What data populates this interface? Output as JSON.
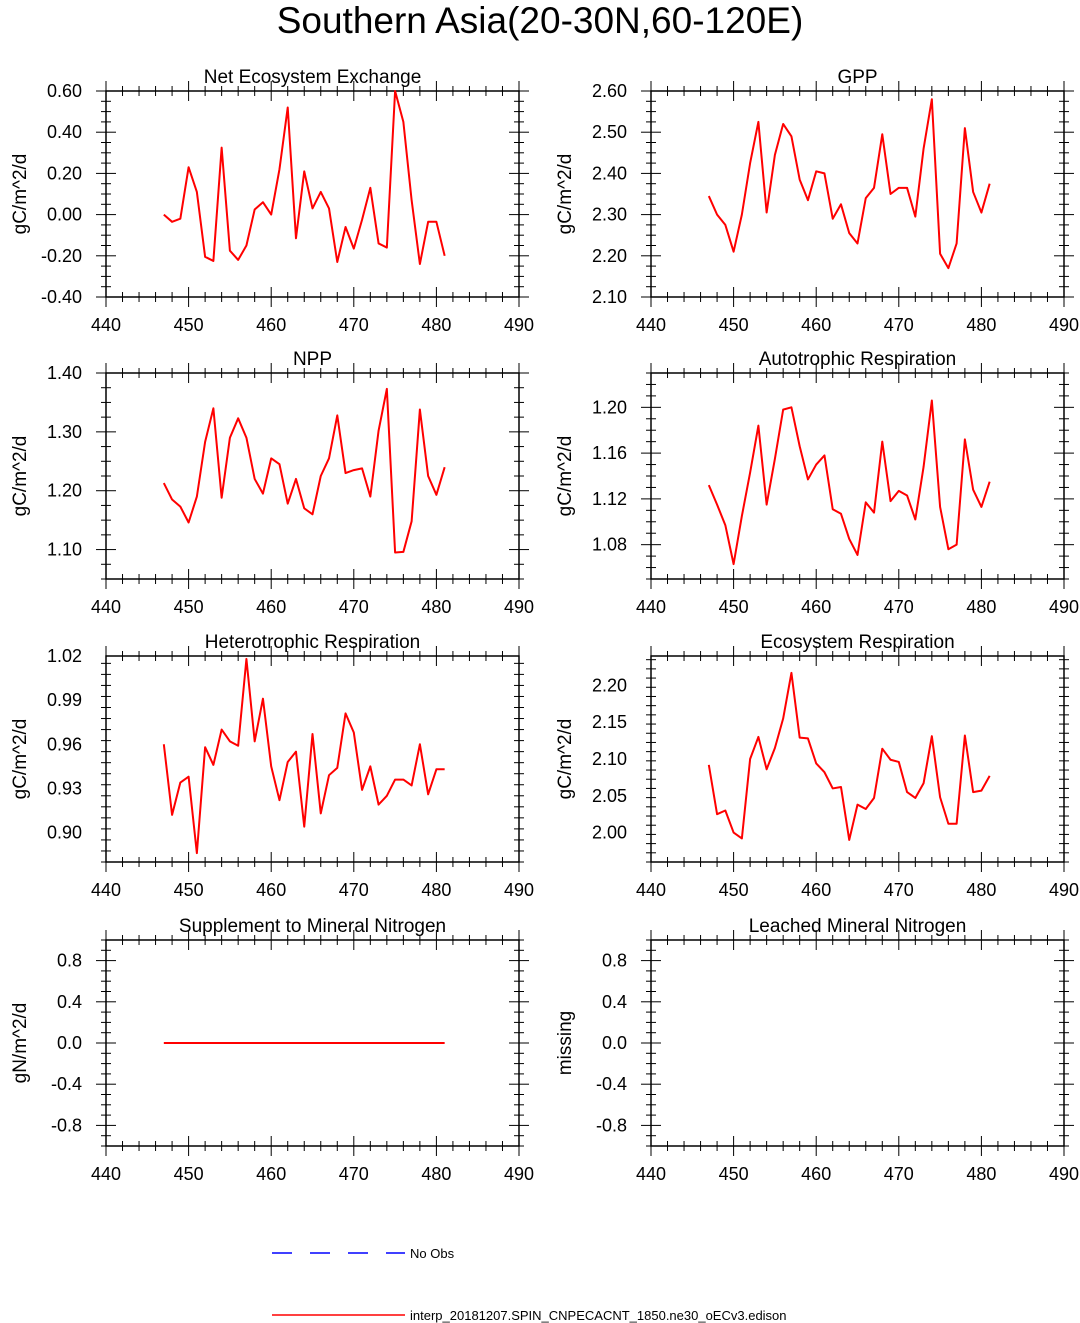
{
  "page": {
    "title": "Southern Asia(20-30N,60-120E)"
  },
  "legend": {
    "no_obs_label": "No Obs",
    "model_label": "interp_20181207.SPIN_CNPECACNT_1850.ne30_oECv3.edison",
    "no_obs_color": "#0000ff",
    "model_color": "#ff0000"
  },
  "chart_data": [
    {
      "type": "line",
      "title": "Net Ecosystem Exchange",
      "ylabel": "gC/m^2/d",
      "xlim": [
        440,
        490
      ],
      "ylim": [
        -0.4,
        0.6
      ],
      "xticks": [
        "440",
        "450",
        "460",
        "470",
        "480",
        "490"
      ],
      "yticks": [
        "-0.40",
        "-0.20",
        "0.00",
        "0.20",
        "0.40",
        "0.60"
      ],
      "ytick_values": [
        -0.4,
        -0.2,
        0.0,
        0.2,
        0.4,
        0.6
      ],
      "x": [
        447,
        448,
        449,
        450,
        451,
        452,
        453,
        454,
        455,
        456,
        457,
        458,
        459,
        460,
        461,
        462,
        463,
        464,
        465,
        466,
        467,
        468,
        469,
        470,
        471,
        472,
        473,
        474,
        475,
        476,
        477,
        478,
        479,
        480,
        481
      ],
      "series": [
        {
          "name": "interp_20181207.SPIN_CNPECACNT_1850.ne30_oECv3.edison",
          "color": "#ff0000",
          "values": [
            0.0,
            -0.035,
            -0.02,
            0.23,
            0.11,
            -0.205,
            -0.225,
            0.325,
            -0.175,
            -0.22,
            -0.15,
            0.025,
            0.06,
            0.0,
            0.22,
            0.52,
            -0.115,
            0.21,
            0.03,
            0.11,
            0.03,
            -0.23,
            -0.06,
            -0.165,
            -0.025,
            0.13,
            -0.14,
            -0.16,
            0.6,
            0.45,
            0.07,
            -0.24,
            -0.035,
            -0.035,
            -0.2
          ]
        }
      ]
    },
    {
      "type": "line",
      "title": "GPP",
      "ylabel": "gC/m^2/d",
      "xlim": [
        440,
        490
      ],
      "ylim": [
        2.1,
        2.6
      ],
      "xticks": [
        "440",
        "450",
        "460",
        "470",
        "480",
        "490"
      ],
      "yticks": [
        "2.10",
        "2.20",
        "2.30",
        "2.40",
        "2.50",
        "2.60"
      ],
      "ytick_values": [
        2.1,
        2.2,
        2.3,
        2.4,
        2.5,
        2.6
      ],
      "x": [
        447,
        448,
        449,
        450,
        451,
        452,
        453,
        454,
        455,
        456,
        457,
        458,
        459,
        460,
        461,
        462,
        463,
        464,
        465,
        466,
        467,
        468,
        469,
        470,
        471,
        472,
        473,
        474,
        475,
        476,
        477,
        478,
        479,
        480,
        481
      ],
      "series": [
        {
          "name": "interp_20181207.SPIN_CNPECACNT_1850.ne30_oECv3.edison",
          "color": "#ff0000",
          "values": [
            2.345,
            2.3,
            2.275,
            2.21,
            2.3,
            2.425,
            2.525,
            2.305,
            2.445,
            2.52,
            2.49,
            2.385,
            2.335,
            2.405,
            2.4,
            2.29,
            2.325,
            2.255,
            2.23,
            2.34,
            2.365,
            2.495,
            2.35,
            2.365,
            2.365,
            2.295,
            2.46,
            2.58,
            2.205,
            2.17,
            2.23,
            2.51,
            2.355,
            2.305,
            2.375
          ]
        }
      ]
    },
    {
      "type": "line",
      "title": "NPP",
      "ylabel": "gC/m^2/d",
      "xlim": [
        440,
        490
      ],
      "ylim": [
        1.05,
        1.4
      ],
      "xticks": [
        "440",
        "450",
        "460",
        "470",
        "480",
        "490"
      ],
      "yticks": [
        "1.10",
        "1.20",
        "1.30",
        "1.40"
      ],
      "ytick_values": [
        1.1,
        1.2,
        1.3,
        1.4
      ],
      "x": [
        447,
        448,
        449,
        450,
        451,
        452,
        453,
        454,
        455,
        456,
        457,
        458,
        459,
        460,
        461,
        462,
        463,
        464,
        465,
        466,
        467,
        468,
        469,
        470,
        471,
        472,
        473,
        474,
        475,
        476,
        477,
        478,
        479,
        480,
        481
      ],
      "series": [
        {
          "name": "interp_20181207.SPIN_CNPECACNT_1850.ne30_oECv3.edison",
          "color": "#ff0000",
          "values": [
            1.213,
            1.185,
            1.173,
            1.146,
            1.19,
            1.283,
            1.34,
            1.188,
            1.29,
            1.323,
            1.29,
            1.22,
            1.195,
            1.255,
            1.245,
            1.178,
            1.22,
            1.17,
            1.16,
            1.225,
            1.255,
            1.328,
            1.23,
            1.235,
            1.238,
            1.19,
            1.302,
            1.373,
            1.095,
            1.096,
            1.148,
            1.338,
            1.225,
            1.193,
            1.24
          ]
        }
      ]
    },
    {
      "type": "line",
      "title": "Autotrophic Respiration",
      "ylabel": "gC/m^2/d",
      "xlim": [
        440,
        490
      ],
      "ylim": [
        1.05,
        1.23
      ],
      "xticks": [
        "440",
        "450",
        "460",
        "470",
        "480",
        "490"
      ],
      "yticks": [
        "1.08",
        "1.12",
        "1.16",
        "1.20"
      ],
      "ytick_values": [
        1.08,
        1.12,
        1.16,
        1.2
      ],
      "x": [
        447,
        448,
        449,
        450,
        451,
        452,
        453,
        454,
        455,
        456,
        457,
        458,
        459,
        460,
        461,
        462,
        463,
        464,
        465,
        466,
        467,
        468,
        469,
        470,
        471,
        472,
        473,
        474,
        475,
        476,
        477,
        478,
        479,
        480,
        481
      ],
      "series": [
        {
          "name": "interp_20181207.SPIN_CNPECACNT_1850.ne30_oECv3.edison",
          "color": "#ff0000",
          "values": [
            1.132,
            1.115,
            1.097,
            1.063,
            1.105,
            1.143,
            1.184,
            1.115,
            1.155,
            1.198,
            1.2,
            1.166,
            1.137,
            1.15,
            1.158,
            1.111,
            1.107,
            1.085,
            1.071,
            1.117,
            1.108,
            1.17,
            1.118,
            1.127,
            1.123,
            1.102,
            1.148,
            1.206,
            1.113,
            1.076,
            1.08,
            1.172,
            1.128,
            1.113,
            1.135
          ]
        }
      ]
    },
    {
      "type": "line",
      "title": "Heterotrophic Respiration",
      "ylabel": "gC/m^2/d",
      "xlim": [
        440,
        490
      ],
      "ylim": [
        0.88,
        1.02
      ],
      "xticks": [
        "440",
        "450",
        "460",
        "470",
        "480",
        "490"
      ],
      "yticks": [
        "0.90",
        "0.93",
        "0.96",
        "0.99",
        "1.02"
      ],
      "ytick_values": [
        0.9,
        0.93,
        0.96,
        0.99,
        1.02
      ],
      "x": [
        447,
        448,
        449,
        450,
        451,
        452,
        453,
        454,
        455,
        456,
        457,
        458,
        459,
        460,
        461,
        462,
        463,
        464,
        465,
        466,
        467,
        468,
        469,
        470,
        471,
        472,
        473,
        474,
        475,
        476,
        477,
        478,
        479,
        480,
        481
      ],
      "series": [
        {
          "name": "interp_20181207.SPIN_CNPECACNT_1850.ne30_oECv3.edison",
          "color": "#ff0000",
          "values": [
            0.96,
            0.912,
            0.934,
            0.938,
            0.886,
            0.958,
            0.946,
            0.97,
            0.962,
            0.959,
            1.018,
            0.962,
            0.991,
            0.945,
            0.922,
            0.948,
            0.955,
            0.904,
            0.967,
            0.913,
            0.939,
            0.944,
            0.981,
            0.968,
            0.929,
            0.945,
            0.919,
            0.925,
            0.936,
            0.936,
            0.932,
            0.96,
            0.926,
            0.943,
            0.943
          ]
        }
      ]
    },
    {
      "type": "line",
      "title": "Ecosystem Respiration",
      "ylabel": "gC/m^2/d",
      "xlim": [
        440,
        490
      ],
      "ylim": [
        1.96,
        2.24
      ],
      "xticks": [
        "440",
        "450",
        "460",
        "470",
        "480",
        "490"
      ],
      "yticks": [
        "2.00",
        "2.05",
        "2.10",
        "2.15",
        "2.20"
      ],
      "ytick_values": [
        2.0,
        2.05,
        2.1,
        2.15,
        2.2
      ],
      "x": [
        447,
        448,
        449,
        450,
        451,
        452,
        453,
        454,
        455,
        456,
        457,
        458,
        459,
        460,
        461,
        462,
        463,
        464,
        465,
        466,
        467,
        468,
        469,
        470,
        471,
        472,
        473,
        474,
        475,
        476,
        477,
        478,
        479,
        480,
        481
      ],
      "series": [
        {
          "name": "interp_20181207.SPIN_CNPECACNT_1850.ne30_oECv3.edison",
          "color": "#ff0000",
          "values": [
            2.092,
            2.025,
            2.03,
            2.0,
            1.992,
            2.1,
            2.13,
            2.086,
            2.115,
            2.155,
            2.217,
            2.129,
            2.128,
            2.094,
            2.082,
            2.06,
            2.062,
            1.99,
            2.038,
            2.032,
            2.047,
            2.114,
            2.099,
            2.096,
            2.055,
            2.047,
            2.067,
            2.131,
            2.048,
            2.012,
            2.012,
            2.132,
            2.055,
            2.057,
            2.077
          ]
        }
      ]
    },
    {
      "type": "line",
      "title": "Supplement to Mineral Nitrogen",
      "ylabel": "gN/m^2/d",
      "xlim": [
        440,
        490
      ],
      "ylim": [
        -1.0,
        1.0
      ],
      "xticks": [
        "440",
        "450",
        "460",
        "470",
        "480",
        "490"
      ],
      "yticks": [
        "-0.8",
        "-0.4",
        "0.0",
        "0.4",
        "0.8"
      ],
      "ytick_values": [
        -0.8,
        -0.4,
        0.0,
        0.4,
        0.8
      ],
      "x": [
        447,
        448,
        449,
        450,
        451,
        452,
        453,
        454,
        455,
        456,
        457,
        458,
        459,
        460,
        461,
        462,
        463,
        464,
        465,
        466,
        467,
        468,
        469,
        470,
        471,
        472,
        473,
        474,
        475,
        476,
        477,
        478,
        479,
        480,
        481
      ],
      "series": [
        {
          "name": "interp_20181207.SPIN_CNPECACNT_1850.ne30_oECv3.edison",
          "color": "#ff0000",
          "values": [
            0,
            0,
            0,
            0,
            0,
            0,
            0,
            0,
            0,
            0,
            0,
            0,
            0,
            0,
            0,
            0,
            0,
            0,
            0,
            0,
            0,
            0,
            0,
            0,
            0,
            0,
            0,
            0,
            0,
            0,
            0,
            0,
            0,
            0,
            0
          ]
        }
      ]
    },
    {
      "type": "line",
      "title": "Leached Mineral Nitrogen",
      "ylabel": "missing",
      "xlim": [
        440,
        490
      ],
      "ylim": [
        -1.0,
        1.0
      ],
      "xticks": [
        "440",
        "450",
        "460",
        "470",
        "480",
        "490"
      ],
      "yticks": [
        "-0.8",
        "-0.4",
        "0.0",
        "0.4",
        "0.8"
      ],
      "ytick_values": [
        -0.8,
        -0.4,
        0.0,
        0.4,
        0.8
      ],
      "x": [],
      "series": []
    }
  ]
}
